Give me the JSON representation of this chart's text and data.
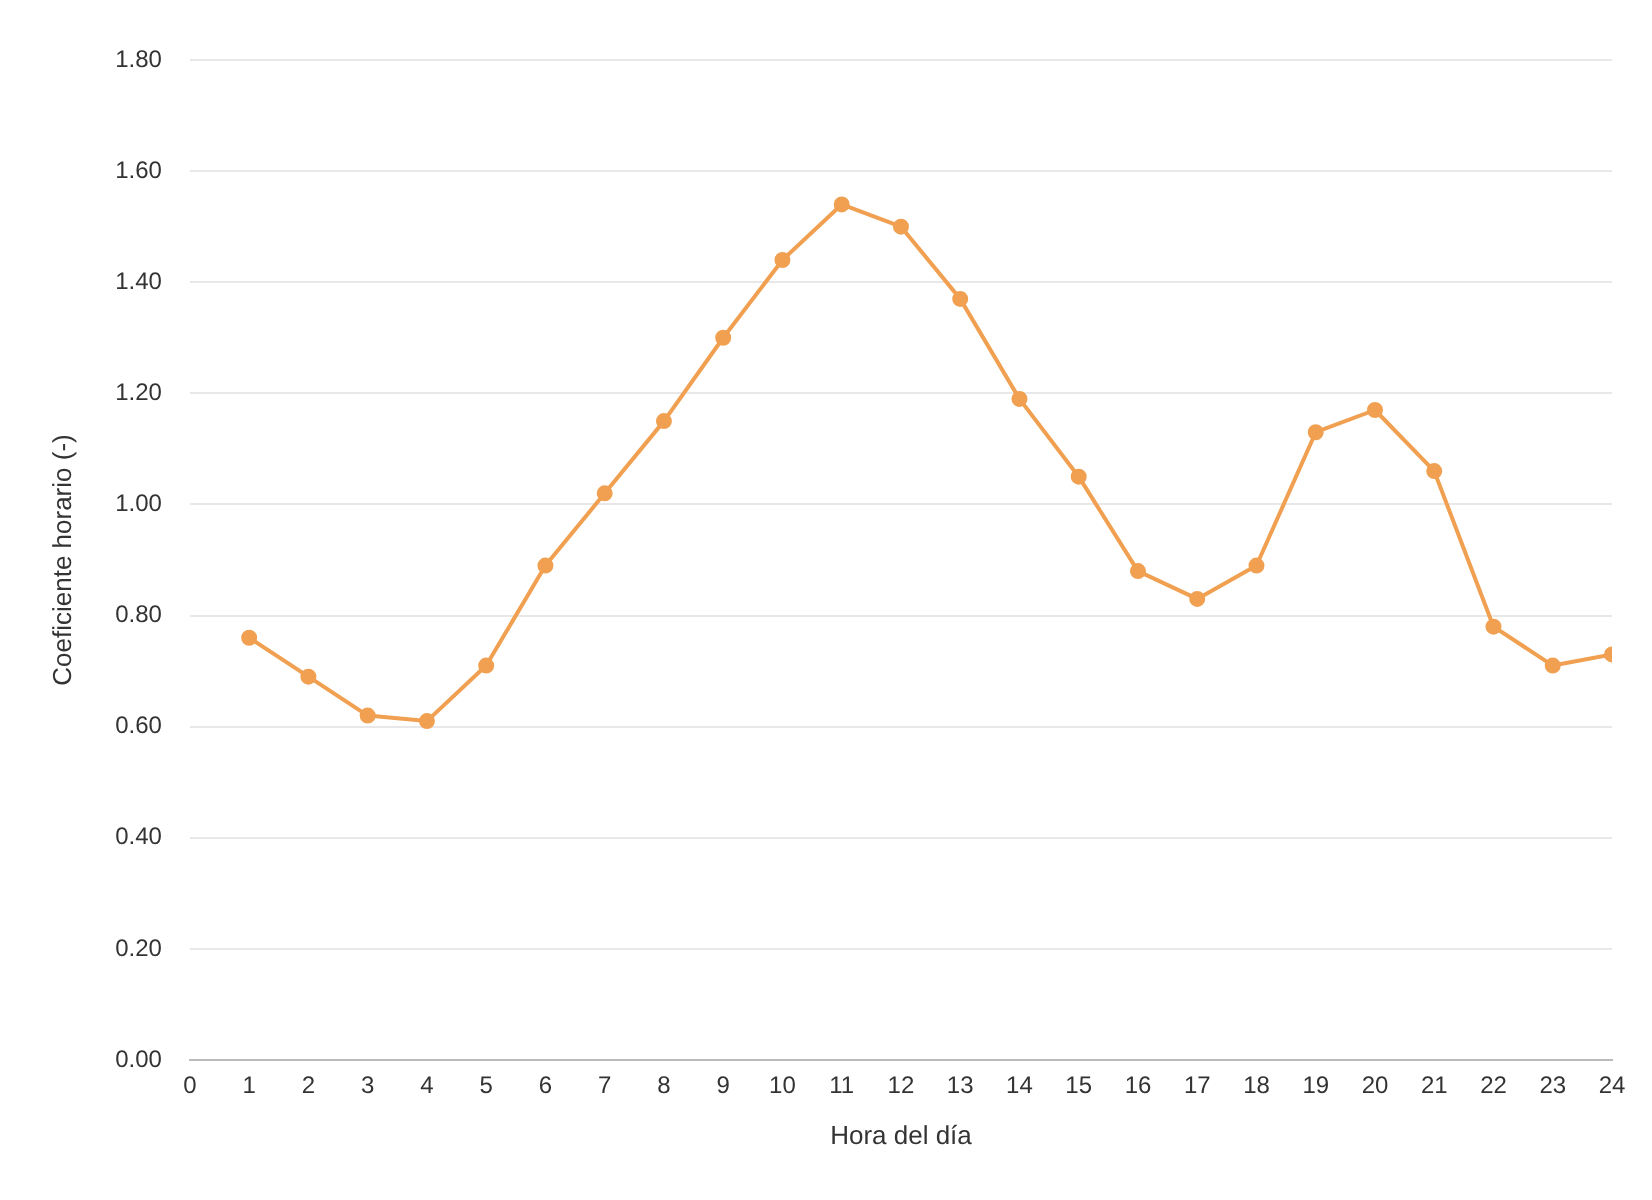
{
  "chart_data": {
    "type": "line",
    "xlabel": "Hora del día",
    "ylabel": "Coeficiente horario (-)",
    "x": [
      1,
      2,
      3,
      4,
      5,
      6,
      7,
      8,
      9,
      10,
      11,
      12,
      13,
      14,
      15,
      16,
      17,
      18,
      19,
      20,
      21,
      22,
      23,
      24
    ],
    "series": [
      {
        "color": "#f0a050",
        "values": [
          0.76,
          0.69,
          0.62,
          0.61,
          0.71,
          0.89,
          1.02,
          1.15,
          1.3,
          1.44,
          1.54,
          1.5,
          1.37,
          1.19,
          1.05,
          0.88,
          0.83,
          0.89,
          1.13,
          1.17,
          1.06,
          0.78,
          0.71,
          0.73
        ]
      }
    ],
    "xlim": [
      0,
      24
    ],
    "xticks": [
      0,
      1,
      2,
      3,
      4,
      5,
      6,
      7,
      8,
      9,
      10,
      11,
      12,
      13,
      14,
      15,
      16,
      17,
      18,
      19,
      20,
      21,
      22,
      23,
      24
    ],
    "ylim": [
      0,
      1.8
    ],
    "yticks": [
      {
        "value": 0,
        "label": "0.00"
      },
      {
        "value": 0.2,
        "label": "0.20"
      },
      {
        "value": 0.4,
        "label": "0.40"
      },
      {
        "value": 0.6,
        "label": "0.60"
      },
      {
        "value": 0.8,
        "label": "0.80"
      },
      {
        "value": 1,
        "label": "1.00"
      },
      {
        "value": 1.2,
        "label": "1.20"
      },
      {
        "value": 1.4,
        "label": "1.40"
      },
      {
        "value": 1.6,
        "label": "1.60"
      },
      {
        "value": 1.8,
        "label": "1.80"
      }
    ],
    "grid": "y",
    "marker": "circle",
    "line_style": "solid",
    "legend": false
  }
}
